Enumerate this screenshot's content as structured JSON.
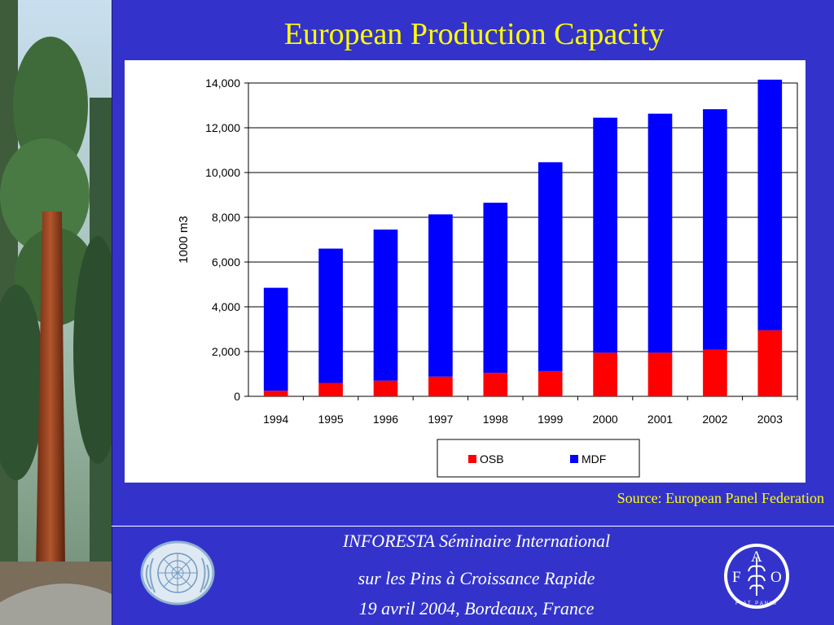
{
  "slide": {
    "title": "European Production Capacity",
    "source": "Source: European Panel Federation",
    "footer": [
      "INFORESTA Séminaire International",
      "sur les Pins à Croissance Rapide",
      "19 avril 2004, Bordeaux, France"
    ],
    "fao_letters": [
      "F",
      "A",
      "O"
    ],
    "fao_motto": "FIAT PANIS"
  },
  "colors": {
    "background": "#3333cc",
    "title": "#ffff00",
    "osb": "#ff0000",
    "mdf": "#0000ff"
  },
  "icons": [
    "tree-photo",
    "un-emblem-icon",
    "fao-logo-icon"
  ],
  "chart_data": {
    "type": "bar",
    "stacked": true,
    "categories": [
      "1994",
      "1995",
      "1996",
      "1997",
      "1998",
      "1999",
      "2000",
      "2001",
      "2002",
      "2003"
    ],
    "series": [
      {
        "name": "OSB",
        "color": "#ff0000",
        "values": [
          250,
          600,
          700,
          880,
          1050,
          1130,
          1950,
          1950,
          2080,
          2950
        ]
      },
      {
        "name": "MDF",
        "color": "#0000ff",
        "values": [
          4600,
          6000,
          6750,
          7250,
          7600,
          9330,
          10500,
          10680,
          10750,
          11200
        ]
      }
    ],
    "ylabel": "1000 m3",
    "ylim": [
      0,
      14000
    ],
    "yticks": [
      "0",
      "2,000",
      "4,000",
      "6,000",
      "8,000",
      "10,000",
      "12,000",
      "14,000"
    ],
    "grid": true,
    "legend": "bottom-center"
  }
}
